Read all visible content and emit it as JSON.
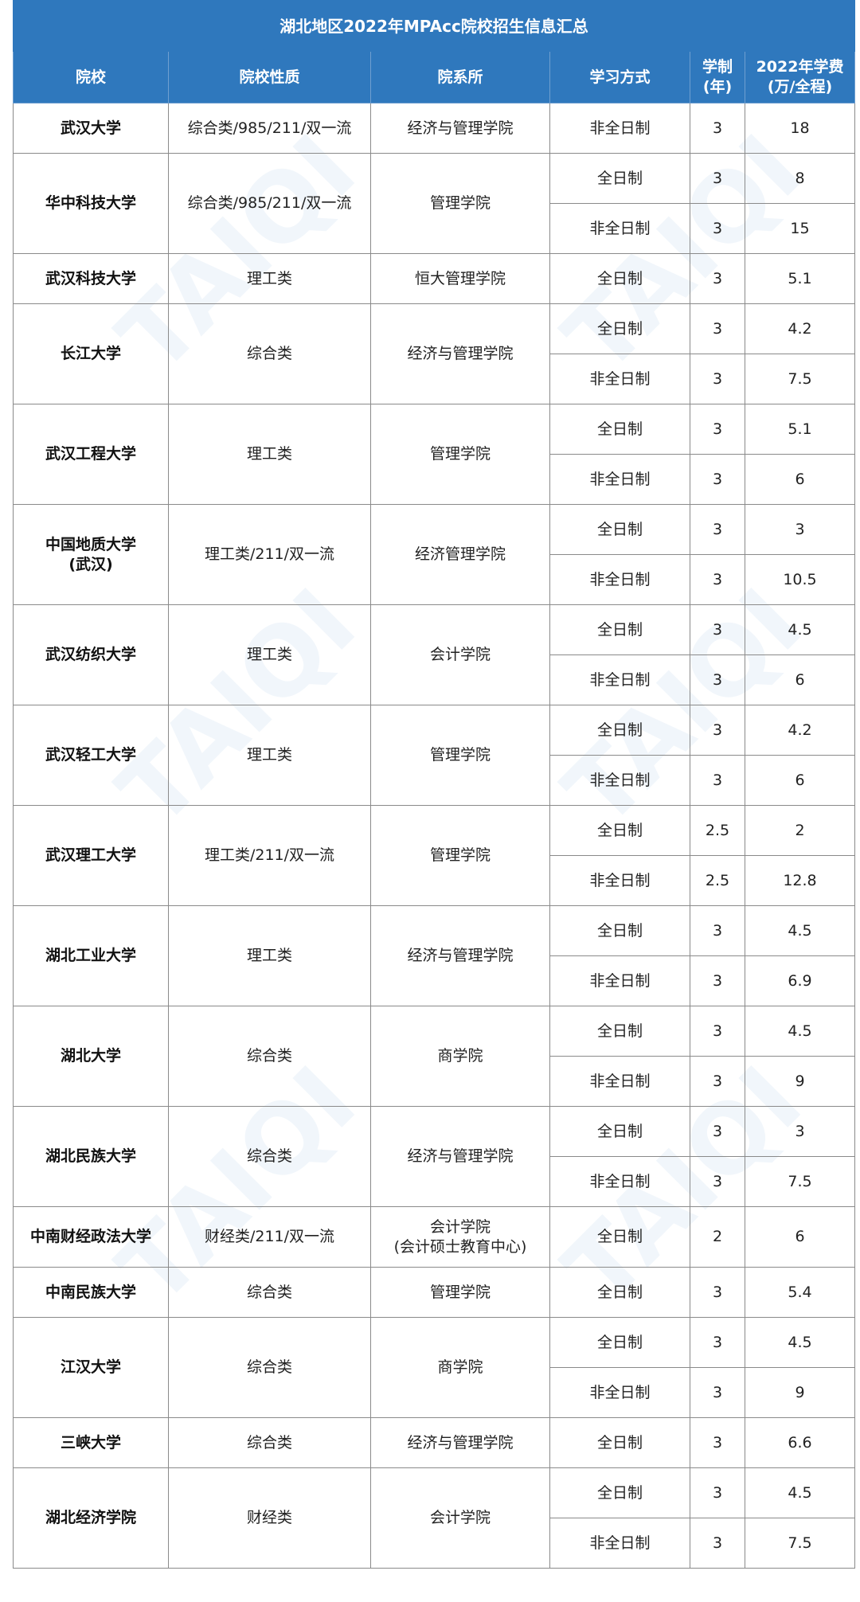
{
  "title": "湖北地区2022年MPAcc院校招生信息汇总",
  "headers": [
    "院校",
    "院校性质",
    "院系所",
    "学习方式",
    "学制(年)",
    "2022年学费(万/全程)"
  ],
  "header_colors": {
    "header_bg": "#2f78bd",
    "header_text": "#ffffff"
  },
  "schools": [
    {
      "name": "武汉大学",
      "type": "综合类/985/211/双一流",
      "dept": "经济与管理学院",
      "programs": [
        {
          "mode": "非全日制",
          "years": "3",
          "fee": "18"
        }
      ]
    },
    {
      "name": "华中科技大学",
      "type": "综合类/985/211/双一流",
      "dept": "管理学院",
      "programs": [
        {
          "mode": "全日制",
          "years": "3",
          "fee": "8"
        },
        {
          "mode": "非全日制",
          "years": "3",
          "fee": "15"
        }
      ]
    },
    {
      "name": "武汉科技大学",
      "type": "理工类",
      "dept": "恒大管理学院",
      "programs": [
        {
          "mode": "全日制",
          "years": "3",
          "fee": "5.1"
        }
      ]
    },
    {
      "name": "长江大学",
      "type": "综合类",
      "dept": "经济与管理学院",
      "programs": [
        {
          "mode": "全日制",
          "years": "3",
          "fee": "4.2"
        },
        {
          "mode": "非全日制",
          "years": "3",
          "fee": "7.5"
        }
      ]
    },
    {
      "name": "武汉工程大学",
      "type": "理工类",
      "dept": "管理学院",
      "programs": [
        {
          "mode": "全日制",
          "years": "3",
          "fee": "5.1"
        },
        {
          "mode": "非全日制",
          "years": "3",
          "fee": "6"
        }
      ]
    },
    {
      "name": "中国地质大学(武汉)",
      "type": "理工类/211/双一流",
      "dept": "经济管理学院",
      "programs": [
        {
          "mode": "全日制",
          "years": "3",
          "fee": "3"
        },
        {
          "mode": "非全日制",
          "years": "3",
          "fee": "10.5"
        }
      ]
    },
    {
      "name": "武汉纺织大学",
      "type": "理工类",
      "dept": "会计学院",
      "programs": [
        {
          "mode": "全日制",
          "years": "3",
          "fee": "4.5"
        },
        {
          "mode": "非全日制",
          "years": "3",
          "fee": "6"
        }
      ]
    },
    {
      "name": "武汉轻工大学",
      "type": "理工类",
      "dept": "管理学院",
      "programs": [
        {
          "mode": "全日制",
          "years": "3",
          "fee": "4.2"
        },
        {
          "mode": "非全日制",
          "years": "3",
          "fee": "6"
        }
      ]
    },
    {
      "name": "武汉理工大学",
      "type": "理工类/211/双一流",
      "dept": "管理学院",
      "programs": [
        {
          "mode": "全日制",
          "years": "2.5",
          "fee": "2"
        },
        {
          "mode": "非全日制",
          "years": "2.5",
          "fee": "12.8"
        }
      ]
    },
    {
      "name": "湖北工业大学",
      "type": "理工类",
      "dept": "经济与管理学院",
      "programs": [
        {
          "mode": "全日制",
          "years": "3",
          "fee": "4.5"
        },
        {
          "mode": "非全日制",
          "years": "3",
          "fee": "6.9"
        }
      ]
    },
    {
      "name": "湖北大学",
      "type": "综合类",
      "dept": "商学院",
      "programs": [
        {
          "mode": "全日制",
          "years": "3",
          "fee": "4.5"
        },
        {
          "mode": "非全日制",
          "years": "3",
          "fee": "9"
        }
      ]
    },
    {
      "name": "湖北民族大学",
      "type": "综合类",
      "dept": "经济与管理学院",
      "programs": [
        {
          "mode": "全日制",
          "years": "3",
          "fee": "3"
        },
        {
          "mode": "非全日制",
          "years": "3",
          "fee": "7.5"
        }
      ]
    },
    {
      "name": "中南财经政法大学",
      "type": "财经类/211/双一流",
      "dept": "会计学院\n(会计硕士教育中心)",
      "programs": [
        {
          "mode": "全日制",
          "years": "2",
          "fee": "6"
        }
      ]
    },
    {
      "name": "中南民族大学",
      "type": "综合类",
      "dept": "管理学院",
      "programs": [
        {
          "mode": "全日制",
          "years": "3",
          "fee": "5.4"
        }
      ]
    },
    {
      "name": "江汉大学",
      "type": "综合类",
      "dept": "商学院",
      "programs": [
        {
          "mode": "全日制",
          "years": "3",
          "fee": "4.5"
        },
        {
          "mode": "非全日制",
          "years": "3",
          "fee": "9"
        }
      ]
    },
    {
      "name": "三峡大学",
      "type": "综合类",
      "dept": "经济与管理学院",
      "programs": [
        {
          "mode": "全日制",
          "years": "3",
          "fee": "6.6"
        }
      ]
    },
    {
      "name": "湖北经济学院",
      "type": "财经类",
      "dept": "会计学院",
      "programs": [
        {
          "mode": "全日制",
          "years": "3",
          "fee": "4.5"
        },
        {
          "mode": "非全日制",
          "years": "3",
          "fee": "7.5"
        }
      ]
    }
  ],
  "watermark": "泰祺 TAIQI EDUCATION"
}
